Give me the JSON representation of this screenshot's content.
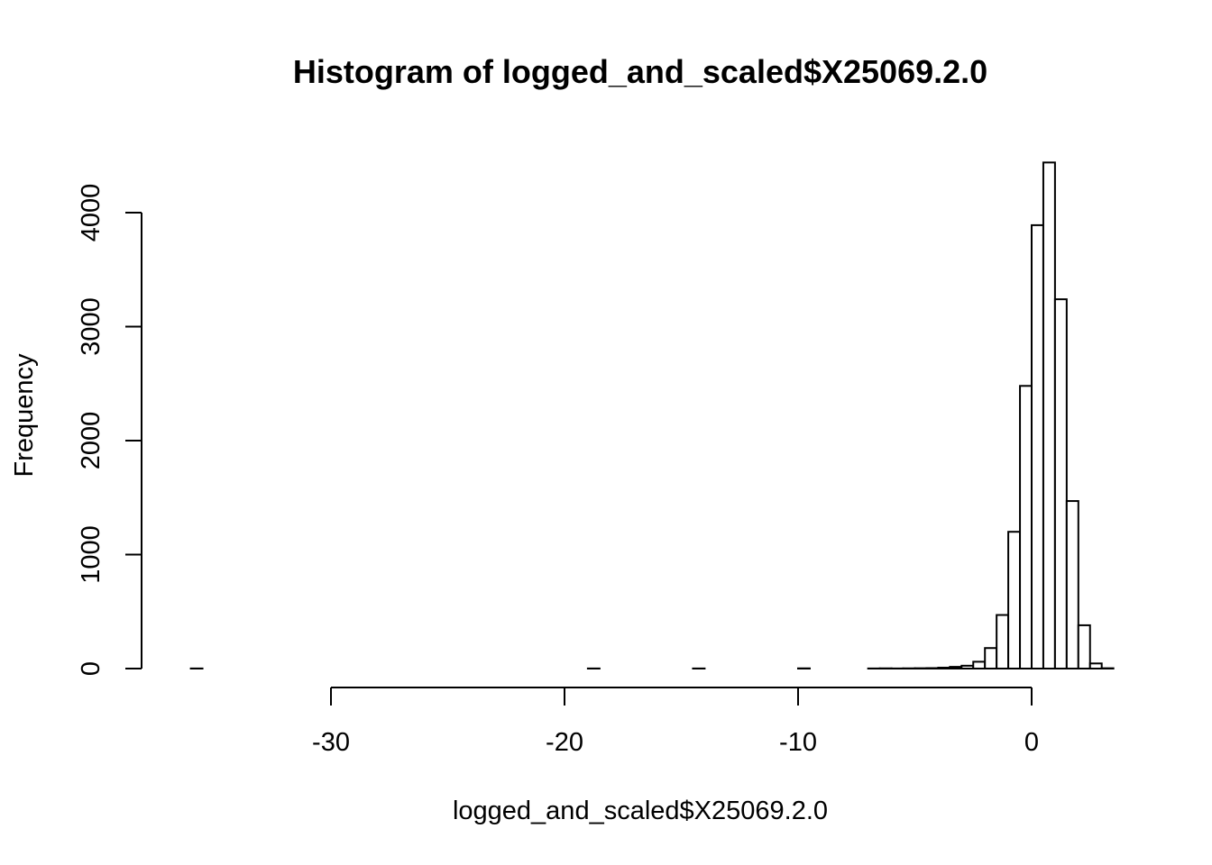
{
  "chart_data": {
    "type": "bar",
    "title": "Histogram of logged_and_scaled$X25069.2.0",
    "xlabel": "logged_and_scaled$X25069.2.0",
    "ylabel": "Frequency",
    "xlim": [
      -36,
      3
    ],
    "ylim": [
      0,
      4450
    ],
    "x_ticks": [
      -30,
      -20,
      -10,
      0
    ],
    "x_tick_labels": [
      "-30",
      "-20",
      "-10",
      "0"
    ],
    "y_ticks": [
      0,
      1000,
      2000,
      3000,
      4000
    ],
    "y_tick_labels": [
      "0",
      "1000",
      "2000",
      "3000",
      "4000"
    ],
    "grid": false,
    "legend": "none",
    "bin_width": 0.5,
    "bins": [
      {
        "x0": -36.0,
        "count": 1
      },
      {
        "x0": -35.5,
        "count": 0
      },
      {
        "x0": -35.0,
        "count": 0
      },
      {
        "x0": -34.5,
        "count": 0
      },
      {
        "x0": -34.0,
        "count": 0
      },
      {
        "x0": -33.5,
        "count": 0
      },
      {
        "x0": -33.0,
        "count": 0
      },
      {
        "x0": -32.5,
        "count": 0
      },
      {
        "x0": -32.0,
        "count": 0
      },
      {
        "x0": -31.5,
        "count": 0
      },
      {
        "x0": -31.0,
        "count": 0
      },
      {
        "x0": -30.5,
        "count": 0
      },
      {
        "x0": -30.0,
        "count": 0
      },
      {
        "x0": -29.5,
        "count": 0
      },
      {
        "x0": -29.0,
        "count": 0
      },
      {
        "x0": -28.5,
        "count": 0
      },
      {
        "x0": -28.0,
        "count": 0
      },
      {
        "x0": -27.5,
        "count": 0
      },
      {
        "x0": -27.0,
        "count": 0
      },
      {
        "x0": -26.5,
        "count": 0
      },
      {
        "x0": -26.0,
        "count": 0
      },
      {
        "x0": -25.5,
        "count": 0
      },
      {
        "x0": -25.0,
        "count": 0
      },
      {
        "x0": -24.5,
        "count": 0
      },
      {
        "x0": -24.0,
        "count": 0
      },
      {
        "x0": -23.5,
        "count": 0
      },
      {
        "x0": -23.0,
        "count": 0
      },
      {
        "x0": -22.5,
        "count": 0
      },
      {
        "x0": -22.0,
        "count": 0
      },
      {
        "x0": -21.5,
        "count": 0
      },
      {
        "x0": -21.0,
        "count": 0
      },
      {
        "x0": -20.5,
        "count": 0
      },
      {
        "x0": -20.0,
        "count": 0
      },
      {
        "x0": -19.5,
        "count": 0
      },
      {
        "x0": -19.0,
        "count": 1
      },
      {
        "x0": -18.5,
        "count": 0
      },
      {
        "x0": -18.0,
        "count": 0
      },
      {
        "x0": -17.5,
        "count": 0
      },
      {
        "x0": -17.0,
        "count": 0
      },
      {
        "x0": -16.5,
        "count": 0
      },
      {
        "x0": -16.0,
        "count": 0
      },
      {
        "x0": -15.5,
        "count": 0
      },
      {
        "x0": -15.0,
        "count": 0
      },
      {
        "x0": -14.5,
        "count": 1
      },
      {
        "x0": -14.0,
        "count": 0
      },
      {
        "x0": -13.5,
        "count": 0
      },
      {
        "x0": -13.0,
        "count": 0
      },
      {
        "x0": -12.5,
        "count": 0
      },
      {
        "x0": -12.0,
        "count": 0
      },
      {
        "x0": -11.5,
        "count": 0
      },
      {
        "x0": -11.0,
        "count": 0
      },
      {
        "x0": -10.5,
        "count": 0
      },
      {
        "x0": -10.0,
        "count": 2
      },
      {
        "x0": -9.5,
        "count": 0
      },
      {
        "x0": -9.0,
        "count": 0
      },
      {
        "x0": -8.5,
        "count": 0
      },
      {
        "x0": -8.0,
        "count": 0
      },
      {
        "x0": -7.5,
        "count": 0
      },
      {
        "x0": -7.0,
        "count": 1
      },
      {
        "x0": -6.5,
        "count": 2
      },
      {
        "x0": -6.0,
        "count": 1
      },
      {
        "x0": -5.5,
        "count": 2
      },
      {
        "x0": -5.0,
        "count": 3
      },
      {
        "x0": -4.5,
        "count": 4
      },
      {
        "x0": -4.0,
        "count": 8
      },
      {
        "x0": -3.5,
        "count": 15
      },
      {
        "x0": -3.0,
        "count": 25
      },
      {
        "x0": -2.5,
        "count": 60
      },
      {
        "x0": -2.0,
        "count": 180
      },
      {
        "x0": -1.5,
        "count": 470
      },
      {
        "x0": -1.0,
        "count": 1200
      },
      {
        "x0": -0.5,
        "count": 2480
      },
      {
        "x0": 0.0,
        "count": 3890
      },
      {
        "x0": 0.5,
        "count": 4440
      },
      {
        "x0": 1.0,
        "count": 3240
      },
      {
        "x0": 1.5,
        "count": 1470
      },
      {
        "x0": 2.0,
        "count": 380
      },
      {
        "x0": 2.5,
        "count": 45
      },
      {
        "x0": 3.0,
        "count": 3
      }
    ]
  }
}
